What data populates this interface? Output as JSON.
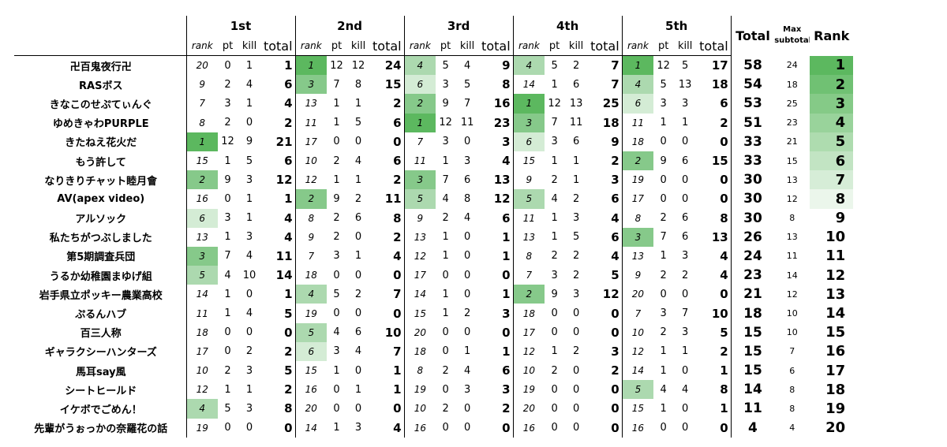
{
  "headers": {
    "rounds": [
      "1st",
      "2nd",
      "3rd",
      "4th",
      "5th"
    ],
    "sub": [
      "rank",
      "pt",
      "kill",
      "total"
    ],
    "total": "Total",
    "max_line1": "Max",
    "max_line2": "subtotal",
    "rank": "Rank"
  },
  "colors": {
    "rank_round": [
      "#5cb85f",
      "#86c98a",
      "#acd9af",
      "#d4ecd5"
    ],
    "final_rank_max": "#5cb85f"
  },
  "rows": [
    {
      "team": "卍百鬼夜行卍",
      "r": [
        [
          20,
          0,
          1,
          1
        ],
        [
          1,
          12,
          12,
          24
        ],
        [
          4,
          5,
          4,
          9
        ],
        [
          4,
          5,
          2,
          7
        ],
        [
          1,
          12,
          5,
          17
        ]
      ],
      "total": 58,
      "max": 24,
      "rank": 1
    },
    {
      "team": "RASボス",
      "r": [
        [
          9,
          2,
          4,
          6
        ],
        [
          3,
          7,
          8,
          15
        ],
        [
          6,
          3,
          5,
          8
        ],
        [
          14,
          1,
          6,
          7
        ],
        [
          4,
          5,
          13,
          18
        ]
      ],
      "total": 54,
      "max": 18,
      "rank": 2
    },
    {
      "team": "きなこのせぷてぃんぐ",
      "r": [
        [
          7,
          3,
          1,
          4
        ],
        [
          13,
          1,
          1,
          2
        ],
        [
          2,
          9,
          7,
          16
        ],
        [
          1,
          12,
          13,
          25
        ],
        [
          6,
          3,
          3,
          6
        ]
      ],
      "total": 53,
      "max": 25,
      "rank": 3
    },
    {
      "team": "ゆめきゃわPURPLE",
      "r": [
        [
          8,
          2,
          0,
          2
        ],
        [
          11,
          1,
          5,
          6
        ],
        [
          1,
          12,
          11,
          23
        ],
        [
          3,
          7,
          11,
          18
        ],
        [
          11,
          1,
          1,
          2
        ]
      ],
      "total": 51,
      "max": 23,
      "rank": 4
    },
    {
      "team": "きたねえ花火だ",
      "r": [
        [
          1,
          12,
          9,
          21
        ],
        [
          17,
          0,
          0,
          0
        ],
        [
          7,
          3,
          0,
          3
        ],
        [
          6,
          3,
          6,
          9
        ],
        [
          18,
          0,
          0,
          0
        ]
      ],
      "total": 33,
      "max": 21,
      "rank": 5
    },
    {
      "team": "もう許して",
      "r": [
        [
          15,
          1,
          5,
          6
        ],
        [
          10,
          2,
          4,
          6
        ],
        [
          11,
          1,
          3,
          4
        ],
        [
          15,
          1,
          1,
          2
        ],
        [
          2,
          9,
          6,
          15
        ]
      ],
      "total": 33,
      "max": 15,
      "rank": 6
    },
    {
      "team": "なりきりチャット睦月會",
      "r": [
        [
          2,
          9,
          3,
          12
        ],
        [
          12,
          1,
          1,
          2
        ],
        [
          3,
          7,
          6,
          13
        ],
        [
          9,
          2,
          1,
          3
        ],
        [
          19,
          0,
          0,
          0
        ]
      ],
      "total": 30,
      "max": 13,
      "rank": 7
    },
    {
      "team": "AV(apex video)",
      "r": [
        [
          16,
          0,
          1,
          1
        ],
        [
          2,
          9,
          2,
          11
        ],
        [
          5,
          4,
          8,
          12
        ],
        [
          5,
          4,
          2,
          6
        ],
        [
          17,
          0,
          0,
          0
        ]
      ],
      "total": 30,
      "max": 12,
      "rank": 8
    },
    {
      "team": "アルソック",
      "r": [
        [
          6,
          3,
          1,
          4
        ],
        [
          8,
          2,
          6,
          8
        ],
        [
          9,
          2,
          4,
          6
        ],
        [
          11,
          1,
          3,
          4
        ],
        [
          8,
          2,
          6,
          8
        ]
      ],
      "total": 30,
      "max": 8,
      "rank": 9
    },
    {
      "team": "私たちがつぶしました",
      "r": [
        [
          13,
          1,
          3,
          4
        ],
        [
          9,
          2,
          0,
          2
        ],
        [
          13,
          1,
          0,
          1
        ],
        [
          13,
          1,
          5,
          6
        ],
        [
          3,
          7,
          6,
          13
        ]
      ],
      "total": 26,
      "max": 13,
      "rank": 10
    },
    {
      "team": "第5期調査兵団",
      "r": [
        [
          3,
          7,
          4,
          11
        ],
        [
          7,
          3,
          1,
          4
        ],
        [
          12,
          1,
          0,
          1
        ],
        [
          8,
          2,
          2,
          4
        ],
        [
          13,
          1,
          3,
          4
        ]
      ],
      "total": 24,
      "max": 11,
      "rank": 11
    },
    {
      "team": "うるか幼稚園まゆげ組",
      "r": [
        [
          5,
          4,
          10,
          14
        ],
        [
          18,
          0,
          0,
          0
        ],
        [
          17,
          0,
          0,
          0
        ],
        [
          7,
          3,
          2,
          5
        ],
        [
          9,
          2,
          2,
          4
        ]
      ],
      "total": 23,
      "max": 14,
      "rank": 12
    },
    {
      "team": "岩手県立ポッキー農業高校",
      "r": [
        [
          14,
          1,
          0,
          1
        ],
        [
          4,
          5,
          2,
          7
        ],
        [
          14,
          1,
          0,
          1
        ],
        [
          2,
          9,
          3,
          12
        ],
        [
          20,
          0,
          0,
          0
        ]
      ],
      "total": 21,
      "max": 12,
      "rank": 13
    },
    {
      "team": "ぷるんハブ",
      "r": [
        [
          11,
          1,
          4,
          5
        ],
        [
          19,
          0,
          0,
          0
        ],
        [
          15,
          1,
          2,
          3
        ],
        [
          18,
          0,
          0,
          0
        ],
        [
          7,
          3,
          7,
          10
        ]
      ],
      "total": 18,
      "max": 10,
      "rank": 14
    },
    {
      "team": "百三人称",
      "r": [
        [
          18,
          0,
          0,
          0
        ],
        [
          5,
          4,
          6,
          10
        ],
        [
          20,
          0,
          0,
          0
        ],
        [
          17,
          0,
          0,
          0
        ],
        [
          10,
          2,
          3,
          5
        ]
      ],
      "total": 15,
      "max": 10,
      "rank": 15
    },
    {
      "team": "ギャラクシーハンターズ",
      "r": [
        [
          17,
          0,
          2,
          2
        ],
        [
          6,
          3,
          4,
          7
        ],
        [
          18,
          0,
          1,
          1
        ],
        [
          12,
          1,
          2,
          3
        ],
        [
          12,
          1,
          1,
          2
        ]
      ],
      "total": 15,
      "max": 7,
      "rank": 16
    },
    {
      "team": "馬耳say風",
      "r": [
        [
          10,
          2,
          3,
          5
        ],
        [
          15,
          1,
          0,
          1
        ],
        [
          8,
          2,
          4,
          6
        ],
        [
          10,
          2,
          0,
          2
        ],
        [
          14,
          1,
          0,
          1
        ]
      ],
      "total": 15,
      "max": 6,
      "rank": 17
    },
    {
      "team": "シートヒールド",
      "r": [
        [
          12,
          1,
          1,
          2
        ],
        [
          16,
          0,
          1,
          1
        ],
        [
          19,
          0,
          3,
          3
        ],
        [
          19,
          0,
          0,
          0
        ],
        [
          5,
          4,
          4,
          8
        ]
      ],
      "total": 14,
      "max": 8,
      "rank": 18
    },
    {
      "team": "イケボでごめん！",
      "r": [
        [
          4,
          5,
          3,
          8
        ],
        [
          20,
          0,
          0,
          0
        ],
        [
          10,
          2,
          0,
          2
        ],
        [
          20,
          0,
          0,
          0
        ],
        [
          15,
          1,
          0,
          1
        ]
      ],
      "total": 11,
      "max": 8,
      "rank": 19
    },
    {
      "team": "先輩がうぉっかの奈羅花の話",
      "r": [
        [
          19,
          0,
          0,
          0
        ],
        [
          14,
          1,
          3,
          4
        ],
        [
          16,
          0,
          0,
          0
        ],
        [
          16,
          0,
          0,
          0
        ],
        [
          16,
          0,
          0,
          0
        ]
      ],
      "total": 4,
      "max": 4,
      "rank": 20
    }
  ]
}
